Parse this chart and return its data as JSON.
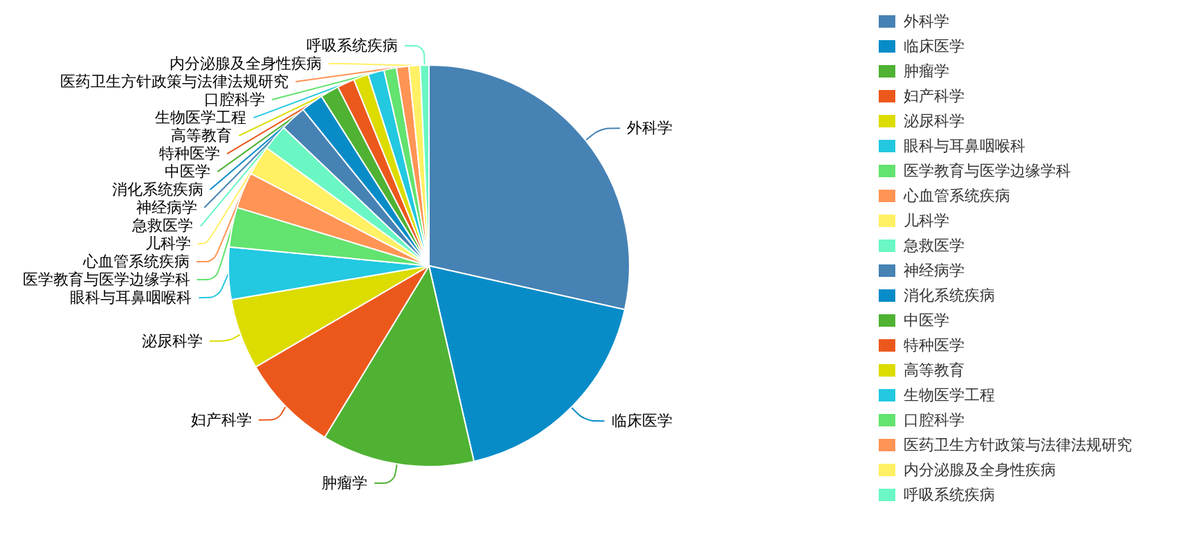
{
  "chart_data": {
    "type": "pie",
    "categories": [
      "外科学",
      "临床医学",
      "肿瘤学",
      "妇产科学",
      "泌尿科学",
      "眼科与耳鼻咽喉科",
      "医学教育与医学边缘学科",
      "心血管系统疾病",
      "儿科学",
      "急救医学",
      "神经病学",
      "消化系统疾病",
      "中医学",
      "特种医学",
      "高等教育",
      "生物医学工程",
      "口腔科学",
      "医药卫生方针政策与法律法规研究",
      "内分泌腺及全身性疾病",
      "呼吸系统疾病"
    ],
    "values": [
      28.5,
      17.9,
      12.3,
      7.9,
      5.7,
      4.2,
      3.2,
      2.9,
      2.4,
      2.1,
      2.1,
      1.8,
      1.5,
      1.4,
      1.2,
      1.3,
      1.0,
      1.0,
      0.9,
      0.7
    ],
    "colors": [
      "#4682b4",
      "#088cc8",
      "#4fb233",
      "#ec581c",
      "#dcdc00",
      "#23c8e1",
      "#63e36f",
      "#ff9455",
      "#fff064",
      "#6af7c3",
      "#4682b4",
      "#088cc8",
      "#4fb233",
      "#ec581c",
      "#dcdc00",
      "#23c8e1",
      "#63e36f",
      "#ff9455",
      "#fff064",
      "#6af7c3"
    ],
    "legend": "right"
  }
}
